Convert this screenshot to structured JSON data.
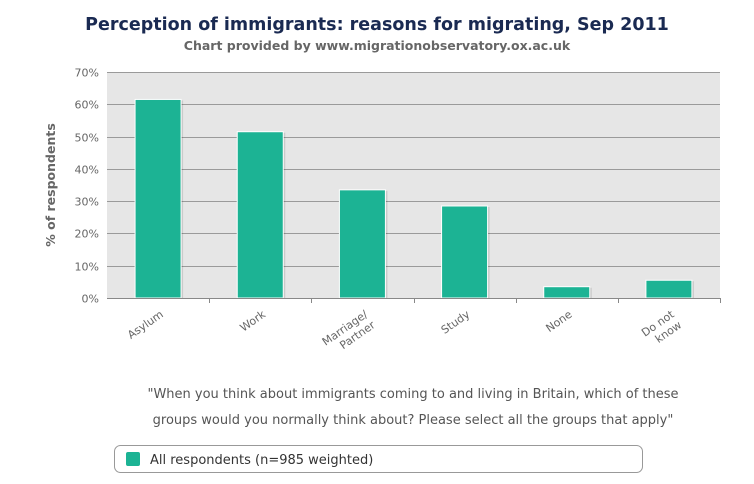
{
  "colors": {
    "bar": "#1cb394",
    "plot_background": "#e6e6e6",
    "grid": "#9a9a9a",
    "title": "#1a2a52",
    "text": "#666666"
  },
  "chart_data": {
    "type": "bar",
    "title": "Perception of immigrants: reasons for migrating, Sep 2011",
    "subtitle": "Chart provided by www.migrationobservatory.ox.ac.uk",
    "xlabel": "",
    "ylabel": "% of respondents",
    "ylim": [
      0,
      70
    ],
    "yticks": [
      "0%",
      "10%",
      "20%",
      "30%",
      "40%",
      "50%",
      "60%",
      "70%"
    ],
    "categories": [
      [
        "Asylum"
      ],
      [
        "Work"
      ],
      [
        "Marriage/",
        "Partner"
      ],
      [
        "Study"
      ],
      [
        "None"
      ],
      [
        "Do not",
        "know"
      ]
    ],
    "series": [
      {
        "name": "All respondents (n=985 weighted)",
        "values": [
          61.5,
          51.5,
          33.5,
          28.5,
          3.5,
          5.5
        ]
      }
    ],
    "grid": true,
    "legend_position": "bottom-center",
    "annotation": [
      "\"When you think about immigrants coming to and living in Britain, which of these",
      "groups would you normally think about? Please select all the groups that apply\""
    ]
  }
}
